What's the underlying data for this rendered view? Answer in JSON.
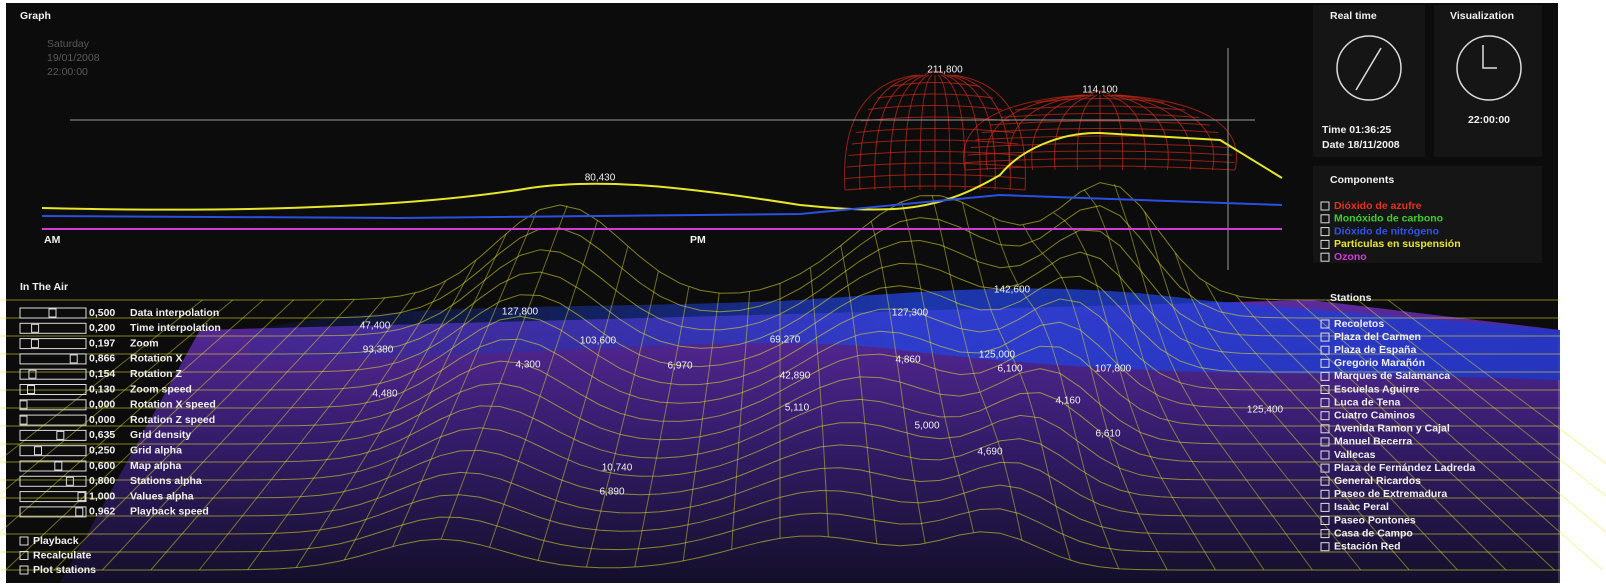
{
  "graph": {
    "title": "Graph",
    "date_lines": [
      "Saturday",
      "19/01/2008",
      "22:00:00"
    ],
    "am": "AM",
    "pm": "PM",
    "value_labels": [
      "211,800",
      "114,100",
      "80,430",
      "127,800",
      "103,600",
      "127,300",
      "142,600",
      "69,270",
      "93,380",
      "47,400",
      "4,300",
      "6,970",
      "4,860",
      "125,000",
      "6,100",
      "107,800",
      "4,480",
      "42,890",
      "5,110",
      "4,160",
      "5,000",
      "6,610",
      "4,690",
      "10,740",
      "6,890",
      "125,400"
    ]
  },
  "in_the_air": {
    "title": "In The Air",
    "sliders": [
      {
        "value": 0.5,
        "label": "0,500",
        "name": "Data interpolation"
      },
      {
        "value": 0.2,
        "label": "0,200",
        "name": "Time interpolation"
      },
      {
        "value": 0.197,
        "label": "0,197",
        "name": "Zoom"
      },
      {
        "value": 0.866,
        "label": "0,866",
        "name": "Rotation X"
      },
      {
        "value": 0.154,
        "label": "0,154",
        "name": "Rotation Z"
      },
      {
        "value": 0.13,
        "label": "0,130",
        "name": "Zoom speed"
      },
      {
        "value": 0,
        "label": "0,000",
        "name": "Rotation X speed"
      },
      {
        "value": 0,
        "label": "0,000",
        "name": "Rotation Z speed"
      },
      {
        "value": 0.635,
        "label": "0,635",
        "name": "Grid density"
      },
      {
        "value": 0.25,
        "label": "0,250",
        "name": "Grid alpha"
      },
      {
        "value": 0.6,
        "label": "0,600",
        "name": "Map alpha"
      },
      {
        "value": 0.8,
        "label": "0,800",
        "name": "Stations alpha"
      },
      {
        "value": 1,
        "label": "1,000",
        "name": "Values alpha"
      },
      {
        "value": 0.962,
        "label": "0,962",
        "name": "Playback speed"
      }
    ]
  },
  "actions": [
    "Playback",
    "Recalculate",
    "Plot stations"
  ],
  "real_time": {
    "title": "Real time",
    "time": "Time 01:36:25",
    "date": "Date 18/11/2008"
  },
  "visualization": {
    "title": "Visualization",
    "time": "22:00:00"
  },
  "components": {
    "title": "Components",
    "items": [
      {
        "name": "Dióxido de azufre",
        "color": "#e8301e"
      },
      {
        "name": "Monóxido de carbono",
        "color": "#3ccf2a"
      },
      {
        "name": "Dióxido de nitrógeno",
        "color": "#2f54e8"
      },
      {
        "name": "Partículas en suspensión",
        "color": "#e8e82a"
      },
      {
        "name": "Ozono",
        "color": "#d23ad8"
      }
    ]
  },
  "stations": {
    "title": "Stations",
    "items": [
      "Recoletos",
      "Plaza del Carmen",
      "Plaza de España",
      "Gregorio Marañón",
      "Marques de Salamanca",
      "Escuelas Aguirre",
      "Luca de Tena",
      "Cuatro Caminos",
      "Avenida Ramon y Cajal",
      "Manuel Becerra",
      "Vallecas",
      "Plaza de Fernández Ladreda",
      "General Ricardos",
      "Paseo de Extremadura",
      "Isaac Peral",
      "Paseo Pontones",
      "Casa de Campo",
      "Estación Red"
    ]
  }
}
